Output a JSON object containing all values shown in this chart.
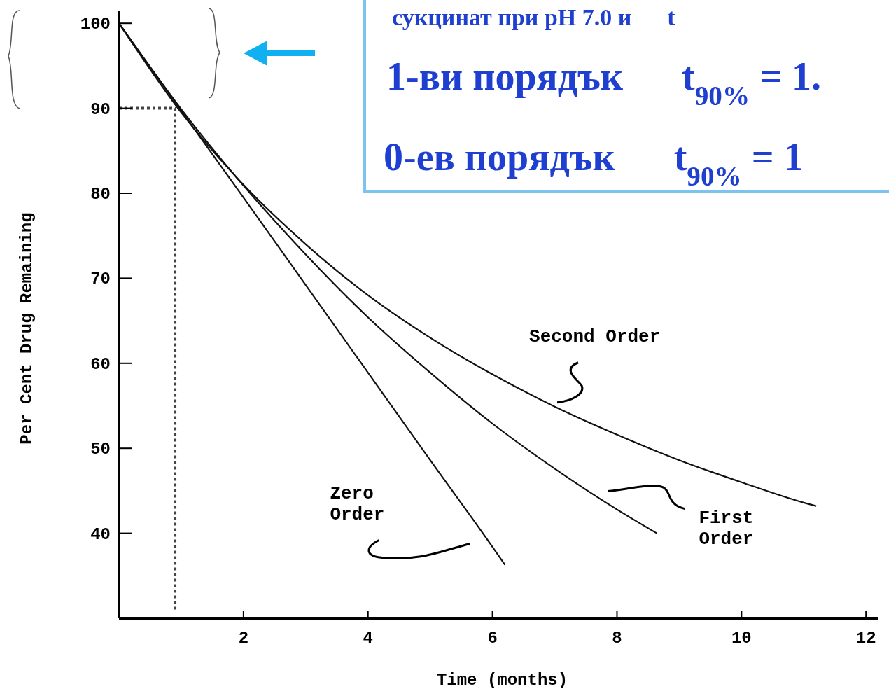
{
  "chart_data": {
    "type": "line",
    "xlabel": "Time (months)",
    "ylabel": "Per Cent Drug Remaining",
    "xlim": [
      0,
      12.2
    ],
    "ylim": [
      30,
      101.5
    ],
    "xticks": [
      2,
      4,
      6,
      8,
      10,
      12
    ],
    "yticks": [
      40,
      50,
      60,
      70,
      80,
      90,
      100
    ],
    "grid": false,
    "line_style": "solid",
    "series": [
      {
        "color": "#444444",
        "line_style": "dotted",
        "x": [
          0,
          0.9,
          0.9
        ],
        "values": [
          90,
          90,
          31
        ]
      },
      {
        "name": "Zero Order",
        "color": "#111111",
        "x": [
          0,
          1,
          2,
          3,
          4,
          5,
          6,
          6.2
        ],
        "values": [
          100,
          89.7,
          79.5,
          69.2,
          58.9,
          48.6,
          38.4,
          36.3
        ]
      },
      {
        "name": "First Order",
        "color": "#111111",
        "x": [
          0,
          1,
          2,
          3,
          4,
          5,
          6,
          7,
          8,
          8.64
        ],
        "values": [
          100,
          89.9,
          80.9,
          72.8,
          65.4,
          58.9,
          52.9,
          47.6,
          42.8,
          40
        ]
      },
      {
        "name": "Second Order",
        "color": "#111111",
        "x": [
          0,
          1,
          2,
          3,
          4,
          5,
          6,
          7,
          8,
          9,
          10,
          11,
          11.2
        ],
        "values": [
          100,
          89.5,
          81.0,
          74.0,
          68.0,
          63.0,
          58.7,
          54.9,
          51.6,
          48.6,
          46.0,
          43.6,
          43.2
        ]
      }
    ],
    "annotations": [
      "сукцинат при pH 7.0 и t",
      "1-ви порядък t$_{90%}$ = 1.",
      "0-ев порядък t$_{90%}$ = 1"
    ]
  }
}
